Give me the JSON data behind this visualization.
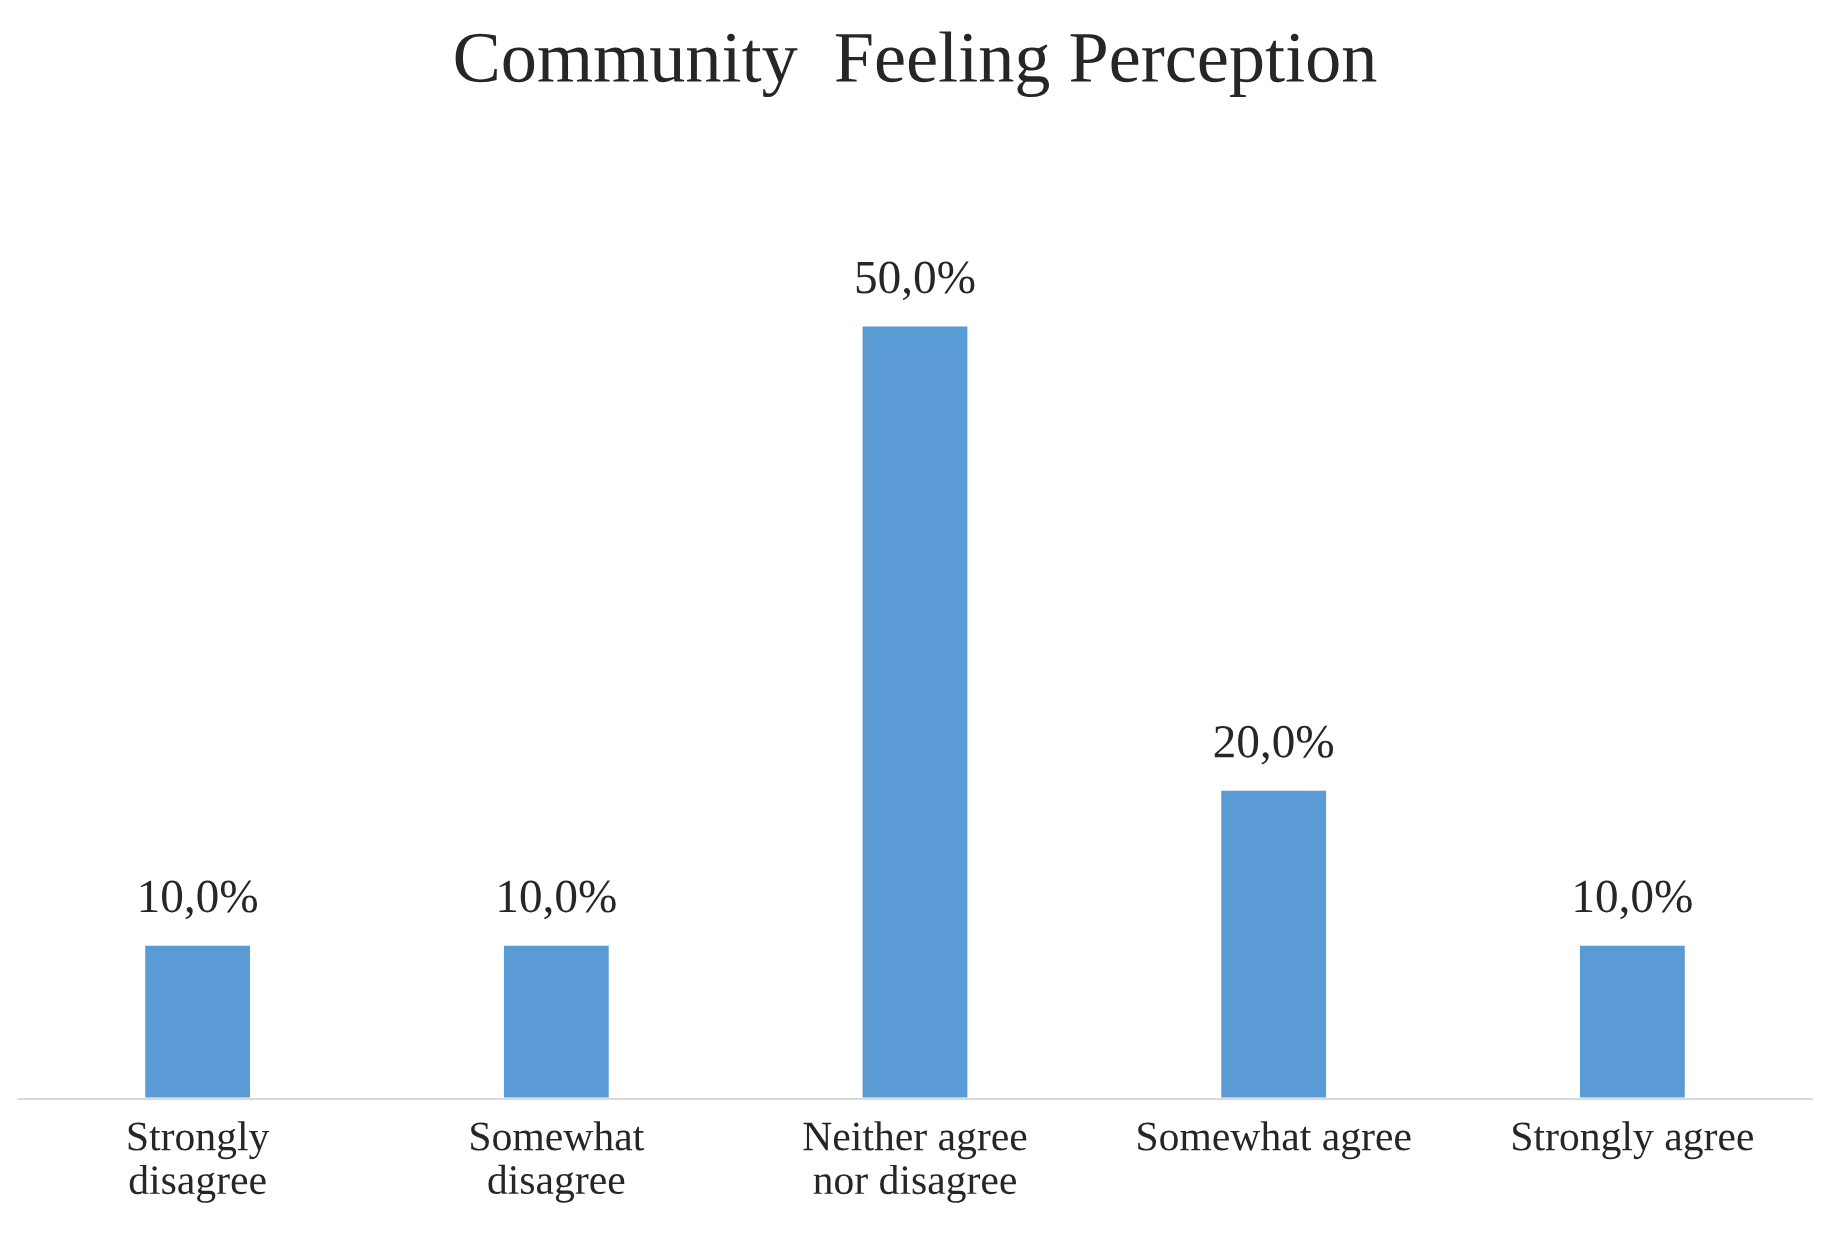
{
  "chart_data": {
    "type": "bar",
    "title": "Community  Feeling Perception",
    "categories": [
      "Strongly\ndisagree",
      "Somewhat\ndisagree",
      "Neither agree\nnor disagree",
      "Somewhat agree",
      "Strongly agree"
    ],
    "values": [
      10,
      10,
      50,
      20,
      10
    ],
    "value_labels": [
      "10,0%",
      "10,0%",
      "50,0%",
      "20,0%",
      "10,0%"
    ],
    "color": "#5b9bd5",
    "grid": false,
    "legend": false
  }
}
